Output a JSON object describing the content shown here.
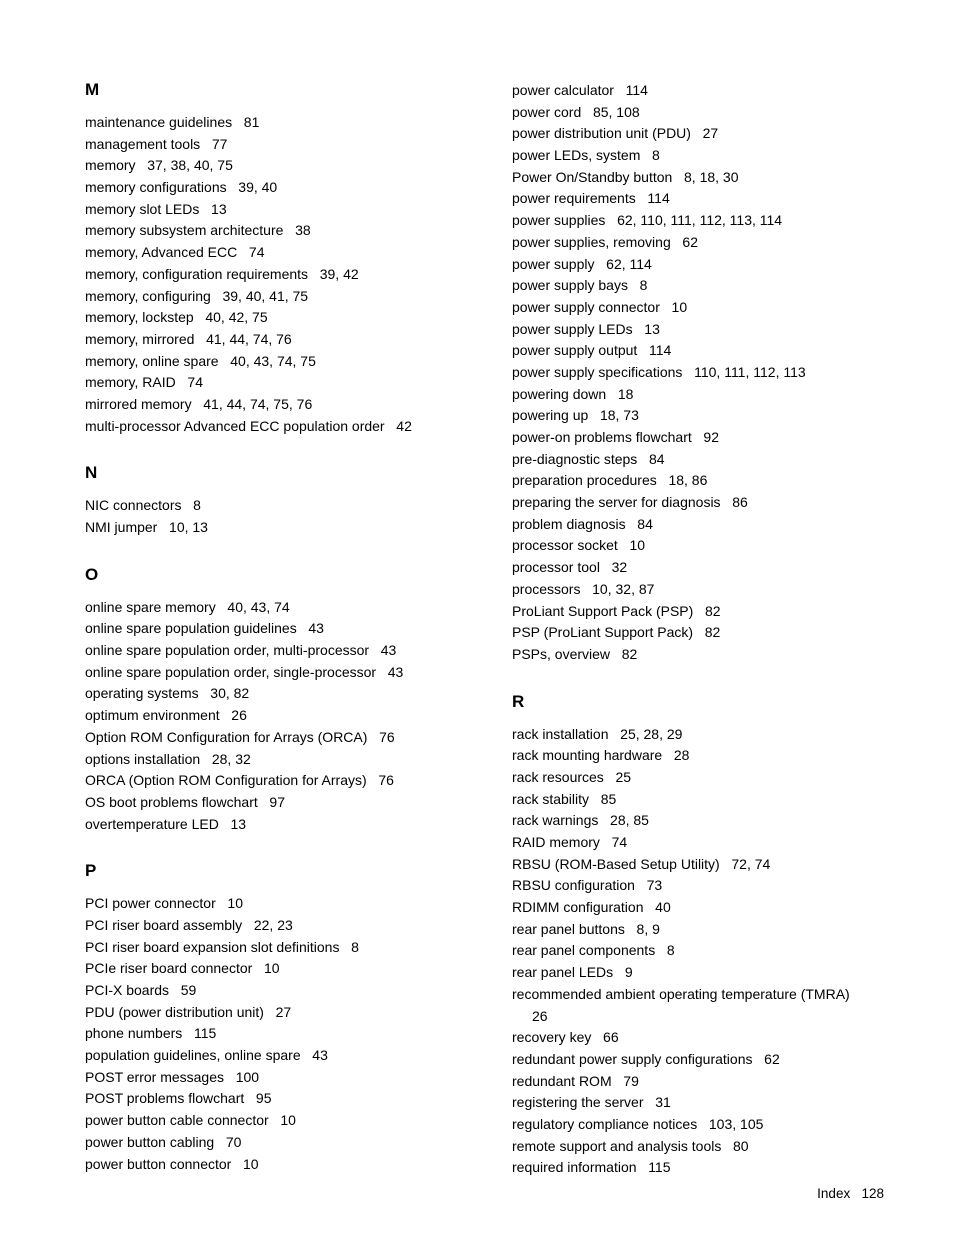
{
  "footer": {
    "label": "Index",
    "page": "128"
  },
  "columns": [
    [
      {
        "heading": "M",
        "gapTop": false
      },
      {
        "term": "maintenance guidelines",
        "pages": "81"
      },
      {
        "term": "management tools",
        "pages": "77"
      },
      {
        "term": "memory",
        "pages": "37, 38, 40, 75"
      },
      {
        "term": "memory configurations",
        "pages": "39, 40"
      },
      {
        "term": "memory slot LEDs",
        "pages": "13"
      },
      {
        "term": "memory subsystem architecture",
        "pages": "38"
      },
      {
        "term": "memory, Advanced ECC",
        "pages": "74"
      },
      {
        "term": "memory, configuration requirements",
        "pages": "39, 42"
      },
      {
        "term": "memory, configuring",
        "pages": "39, 40, 41, 75"
      },
      {
        "term": "memory, lockstep",
        "pages": "40, 42, 75"
      },
      {
        "term": "memory, mirrored",
        "pages": "41, 44, 74, 76"
      },
      {
        "term": "memory, online spare",
        "pages": "40, 43, 74, 75"
      },
      {
        "term": "memory, RAID",
        "pages": "74"
      },
      {
        "term": "mirrored memory",
        "pages": "41, 44, 74, 75, 76"
      },
      {
        "term": "multi-processor Advanced ECC population order",
        "pages": "42"
      },
      {
        "heading": "N",
        "gapTop": true
      },
      {
        "term": "NIC connectors",
        "pages": "8"
      },
      {
        "term": "NMI jumper",
        "pages": "10, 13"
      },
      {
        "heading": "O",
        "gapTop": true
      },
      {
        "term": "online spare memory",
        "pages": "40, 43, 74"
      },
      {
        "term": "online spare population guidelines",
        "pages": "43"
      },
      {
        "term": "online spare population order, multi-processor",
        "pages": "43"
      },
      {
        "term": "online spare population order, single-processor",
        "pages": "43"
      },
      {
        "term": "operating systems",
        "pages": "30, 82"
      },
      {
        "term": "optimum environment",
        "pages": "26"
      },
      {
        "term": "Option ROM Configuration for Arrays (ORCA)",
        "pages": "76"
      },
      {
        "term": "options installation",
        "pages": "28, 32"
      },
      {
        "term": "ORCA (Option ROM Configuration for Arrays)",
        "pages": "76"
      },
      {
        "term": "OS boot problems flowchart",
        "pages": "97"
      },
      {
        "term": "overtemperature LED",
        "pages": "13"
      },
      {
        "heading": "P",
        "gapTop": true
      },
      {
        "term": "PCI power connector",
        "pages": "10"
      },
      {
        "term": "PCI riser board assembly",
        "pages": "22, 23"
      },
      {
        "term": "PCI riser board expansion slot definitions",
        "pages": "8"
      },
      {
        "term": "PCIe riser board connector",
        "pages": "10"
      },
      {
        "term": "PCI-X boards",
        "pages": "59"
      },
      {
        "term": "PDU (power distribution unit)",
        "pages": "27"
      },
      {
        "term": "phone numbers",
        "pages": "115"
      },
      {
        "term": "population guidelines, online spare",
        "pages": "43"
      },
      {
        "term": "POST error messages",
        "pages": "100"
      },
      {
        "term": "POST problems flowchart",
        "pages": "95"
      },
      {
        "term": "power button cable connector",
        "pages": "10"
      },
      {
        "term": "power button cabling",
        "pages": "70"
      },
      {
        "term": "power button connector",
        "pages": "10"
      }
    ],
    [
      {
        "term": "power calculator",
        "pages": "114"
      },
      {
        "term": "power cord",
        "pages": "85, 108"
      },
      {
        "term": "power distribution unit (PDU)",
        "pages": "27"
      },
      {
        "term": "power LEDs, system",
        "pages": "8"
      },
      {
        "term": "Power On/Standby button",
        "pages": "8, 18, 30"
      },
      {
        "term": "power requirements",
        "pages": "114"
      },
      {
        "term": "power supplies",
        "pages": "62, 110, 111, 112, 113, 114"
      },
      {
        "term": "power supplies, removing",
        "pages": "62"
      },
      {
        "term": "power supply",
        "pages": "62, 114"
      },
      {
        "term": "power supply bays",
        "pages": "8"
      },
      {
        "term": "power supply connector",
        "pages": "10"
      },
      {
        "term": "power supply LEDs",
        "pages": "13"
      },
      {
        "term": "power supply output",
        "pages": "114"
      },
      {
        "term": "power supply specifications",
        "pages": "110, 111, 112, 113"
      },
      {
        "term": "powering down",
        "pages": "18"
      },
      {
        "term": "powering up",
        "pages": "18, 73"
      },
      {
        "term": "power-on problems flowchart",
        "pages": "92"
      },
      {
        "term": "pre-diagnostic steps",
        "pages": "84"
      },
      {
        "term": "preparation procedures",
        "pages": "18, 86"
      },
      {
        "term": "preparing the server for diagnosis",
        "pages": "86"
      },
      {
        "term": "problem diagnosis",
        "pages": "84"
      },
      {
        "term": "processor socket",
        "pages": "10"
      },
      {
        "term": "processor tool",
        "pages": "32"
      },
      {
        "term": "processors",
        "pages": "10, 32, 87"
      },
      {
        "term": "ProLiant Support Pack (PSP)",
        "pages": "82"
      },
      {
        "term": "PSP (ProLiant Support Pack)",
        "pages": "82"
      },
      {
        "term": "PSPs, overview",
        "pages": "82"
      },
      {
        "heading": "R",
        "gapTop": true
      },
      {
        "term": "rack installation",
        "pages": "25, 28, 29"
      },
      {
        "term": "rack mounting hardware",
        "pages": "28"
      },
      {
        "term": "rack resources",
        "pages": "25"
      },
      {
        "term": "rack stability",
        "pages": "85"
      },
      {
        "term": "rack warnings",
        "pages": "28, 85"
      },
      {
        "term": "RAID memory",
        "pages": "74"
      },
      {
        "term": "RBSU (ROM-Based Setup Utility)",
        "pages": "72, 74"
      },
      {
        "term": "RBSU configuration",
        "pages": "73"
      },
      {
        "term": "RDIMM configuration",
        "pages": "40"
      },
      {
        "term": "rear panel buttons",
        "pages": "8, 9"
      },
      {
        "term": "rear panel components",
        "pages": "8"
      },
      {
        "term": "rear panel LEDs",
        "pages": "9"
      },
      {
        "term": "recommended ambient operating temperature (TMRA)",
        "pages": "26",
        "indentPages": true
      },
      {
        "term": "recovery key",
        "pages": "66"
      },
      {
        "term": "redundant power supply configurations",
        "pages": "62"
      },
      {
        "term": "redundant ROM",
        "pages": "79"
      },
      {
        "term": "registering the server",
        "pages": "31"
      },
      {
        "term": "regulatory compliance notices",
        "pages": "103, 105"
      },
      {
        "term": "remote support and analysis tools",
        "pages": "80"
      },
      {
        "term": "required information",
        "pages": "115"
      }
    ]
  ]
}
